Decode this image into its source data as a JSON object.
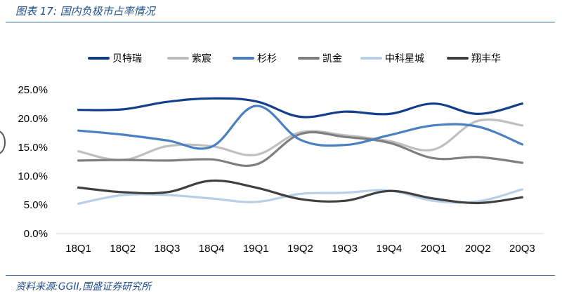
{
  "header": {
    "title": "图表 17:  国内负极市占率情况"
  },
  "footer": {
    "source": "资料来源:GGII,国盛证券研究所"
  },
  "chart_data": {
    "type": "line",
    "title": "",
    "xlabel": "",
    "ylabel": "",
    "ylim": [
      0,
      25
    ],
    "yticks": [
      "0.0%",
      "5.0%",
      "10.0%",
      "15.0%",
      "20.0%",
      "25.0%"
    ],
    "ytick_values": [
      0,
      5,
      10,
      15,
      20,
      25
    ],
    "categories": [
      "18Q1",
      "18Q2",
      "18Q3",
      "18Q4",
      "19Q1",
      "19Q2",
      "19Q3",
      "19Q4",
      "20Q1",
      "20Q2",
      "20Q3"
    ],
    "legend_position": "top",
    "series": [
      {
        "name": "贝特瑞",
        "color": "#123f8c",
        "values": [
          21.5,
          21.6,
          22.9,
          23.5,
          23.0,
          20.3,
          21.2,
          20.8,
          22.6,
          20.8,
          22.6
        ]
      },
      {
        "name": "紫宸",
        "color": "#bfbfbf",
        "values": [
          14.3,
          12.8,
          15.2,
          15.2,
          13.7,
          17.6,
          17.1,
          16.1,
          14.6,
          19.6,
          18.8
        ]
      },
      {
        "name": "杉杉",
        "color": "#4a7fc1",
        "values": [
          17.9,
          17.2,
          16.2,
          15.1,
          22.2,
          16.3,
          15.4,
          17.1,
          18.8,
          18.6,
          15.5
        ]
      },
      {
        "name": "凯金",
        "color": "#7f7f7f",
        "values": [
          12.7,
          12.8,
          12.7,
          12.9,
          12.0,
          17.3,
          16.8,
          15.8,
          13.1,
          13.3,
          12.3
        ]
      },
      {
        "name": "中科星城",
        "color": "#b8cfe8",
        "values": [
          5.2,
          6.7,
          6.7,
          6.1,
          5.5,
          6.9,
          7.1,
          7.5,
          5.7,
          5.6,
          7.7
        ]
      },
      {
        "name": "翔丰华",
        "color": "#404040",
        "values": [
          8.0,
          7.2,
          7.2,
          9.2,
          8.0,
          6.0,
          5.7,
          7.4,
          6.1,
          5.3,
          6.3
        ]
      }
    ]
  }
}
